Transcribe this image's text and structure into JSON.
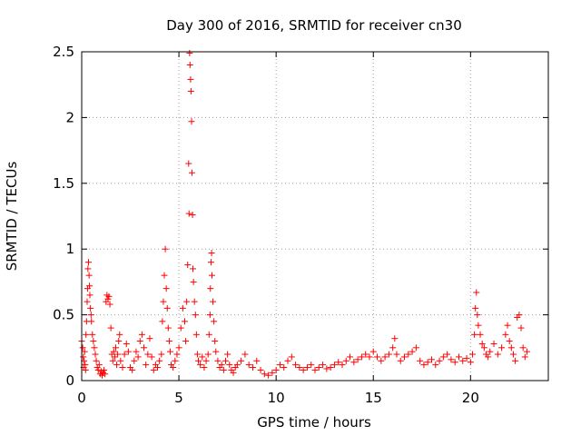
{
  "chart_data": {
    "type": "scatter",
    "title": "Day 300 of 2016, SRMTID for receiver cn30",
    "xlabel": "GPS time / hours",
    "ylabel": "SRMTID / TECUs",
    "xlim": [
      0,
      24
    ],
    "ylim": [
      0,
      2.5
    ],
    "x_ticks": [
      0,
      5,
      10,
      15,
      20
    ],
    "x_tick_labels": [
      "0",
      "5",
      "10",
      "15",
      "20"
    ],
    "y_ticks": [
      0,
      0.5,
      1,
      1.5,
      2,
      2.5
    ],
    "y_tick_labels": [
      "0",
      "0.5",
      "1",
      "1.5",
      "2",
      "2.5"
    ],
    "grid": true,
    "marker": "+",
    "color": "#ff0000",
    "series": [
      {
        "name": "SRMTID",
        "points": [
          [
            0.0,
            0.3
          ],
          [
            0.05,
            0.25
          ],
          [
            0.08,
            0.18
          ],
          [
            0.1,
            0.1
          ],
          [
            0.12,
            0.15
          ],
          [
            0.15,
            0.22
          ],
          [
            0.18,
            0.12
          ],
          [
            0.2,
            0.08
          ],
          [
            0.22,
            0.35
          ],
          [
            0.25,
            0.45
          ],
          [
            0.28,
            0.6
          ],
          [
            0.3,
            0.7
          ],
          [
            0.32,
            0.85
          ],
          [
            0.35,
            0.9
          ],
          [
            0.38,
            0.8
          ],
          [
            0.4,
            0.72
          ],
          [
            0.42,
            0.65
          ],
          [
            0.45,
            0.55
          ],
          [
            0.48,
            0.5
          ],
          [
            0.5,
            0.45
          ],
          [
            0.55,
            0.35
          ],
          [
            0.6,
            0.3
          ],
          [
            0.65,
            0.25
          ],
          [
            0.7,
            0.2
          ],
          [
            0.75,
            0.15
          ],
          [
            0.8,
            0.1
          ],
          [
            0.85,
            0.08
          ],
          [
            0.9,
            0.12
          ],
          [
            0.95,
            0.05
          ],
          [
            1.0,
            0.07
          ],
          [
            1.05,
            0.04
          ],
          [
            1.1,
            0.06
          ],
          [
            1.15,
            0.08
          ],
          [
            1.2,
            0.05
          ],
          [
            1.25,
            0.6
          ],
          [
            1.3,
            0.65
          ],
          [
            1.35,
            0.62
          ],
          [
            1.4,
            0.64
          ],
          [
            1.45,
            0.58
          ],
          [
            1.5,
            0.4
          ],
          [
            1.55,
            0.2
          ],
          [
            1.6,
            0.15
          ],
          [
            1.65,
            0.22
          ],
          [
            1.7,
            0.18
          ],
          [
            1.75,
            0.25
          ],
          [
            1.8,
            0.12
          ],
          [
            1.85,
            0.2
          ],
          [
            1.9,
            0.3
          ],
          [
            1.95,
            0.35
          ],
          [
            2.0,
            0.15
          ],
          [
            2.1,
            0.1
          ],
          [
            2.2,
            0.2
          ],
          [
            2.3,
            0.28
          ],
          [
            2.4,
            0.22
          ],
          [
            2.5,
            0.1
          ],
          [
            2.6,
            0.08
          ],
          [
            2.7,
            0.15
          ],
          [
            2.8,
            0.22
          ],
          [
            2.9,
            0.18
          ],
          [
            3.0,
            0.3
          ],
          [
            3.1,
            0.35
          ],
          [
            3.2,
            0.25
          ],
          [
            3.3,
            0.12
          ],
          [
            3.4,
            0.2
          ],
          [
            3.5,
            0.32
          ],
          [
            3.6,
            0.18
          ],
          [
            3.7,
            0.08
          ],
          [
            3.8,
            0.12
          ],
          [
            3.9,
            0.1
          ],
          [
            4.0,
            0.15
          ],
          [
            4.1,
            0.2
          ],
          [
            4.15,
            0.45
          ],
          [
            4.2,
            0.6
          ],
          [
            4.25,
            0.8
          ],
          [
            4.3,
            1.0
          ],
          [
            4.35,
            0.7
          ],
          [
            4.4,
            0.55
          ],
          [
            4.45,
            0.4
          ],
          [
            4.5,
            0.3
          ],
          [
            4.55,
            0.22
          ],
          [
            4.6,
            0.12
          ],
          [
            4.7,
            0.1
          ],
          [
            4.8,
            0.15
          ],
          [
            4.9,
            0.2
          ],
          [
            5.0,
            0.25
          ],
          [
            5.1,
            0.4
          ],
          [
            5.2,
            0.55
          ],
          [
            5.3,
            0.45
          ],
          [
            5.35,
            0.3
          ],
          [
            5.4,
            0.6
          ],
          [
            5.45,
            0.88
          ],
          [
            5.5,
            1.65
          ],
          [
            5.52,
            1.27
          ],
          [
            5.55,
            2.49
          ],
          [
            5.57,
            2.4
          ],
          [
            5.6,
            2.29
          ],
          [
            5.62,
            2.2
          ],
          [
            5.65,
            1.97
          ],
          [
            5.67,
            1.58
          ],
          [
            5.7,
            1.26
          ],
          [
            5.72,
            0.85
          ],
          [
            5.75,
            0.75
          ],
          [
            5.8,
            0.6
          ],
          [
            5.85,
            0.5
          ],
          [
            5.9,
            0.35
          ],
          [
            5.95,
            0.2
          ],
          [
            6.0,
            0.15
          ],
          [
            6.1,
            0.12
          ],
          [
            6.2,
            0.18
          ],
          [
            6.3,
            0.1
          ],
          [
            6.4,
            0.15
          ],
          [
            6.5,
            0.2
          ],
          [
            6.55,
            0.35
          ],
          [
            6.6,
            0.5
          ],
          [
            6.62,
            0.7
          ],
          [
            6.65,
            0.9
          ],
          [
            6.68,
            0.97
          ],
          [
            6.7,
            0.8
          ],
          [
            6.75,
            0.6
          ],
          [
            6.8,
            0.45
          ],
          [
            6.85,
            0.3
          ],
          [
            6.9,
            0.22
          ],
          [
            7.0,
            0.15
          ],
          [
            7.1,
            0.1
          ],
          [
            7.2,
            0.12
          ],
          [
            7.3,
            0.08
          ],
          [
            7.4,
            0.15
          ],
          [
            7.5,
            0.2
          ],
          [
            7.6,
            0.12
          ],
          [
            7.7,
            0.08
          ],
          [
            7.8,
            0.06
          ],
          [
            7.9,
            0.1
          ],
          [
            8.0,
            0.12
          ],
          [
            8.2,
            0.15
          ],
          [
            8.4,
            0.2
          ],
          [
            8.6,
            0.12
          ],
          [
            8.8,
            0.1
          ],
          [
            9.0,
            0.15
          ],
          [
            9.2,
            0.08
          ],
          [
            9.4,
            0.05
          ],
          [
            9.6,
            0.04
          ],
          [
            9.8,
            0.06
          ],
          [
            10.0,
            0.08
          ],
          [
            10.2,
            0.12
          ],
          [
            10.4,
            0.1
          ],
          [
            10.6,
            0.15
          ],
          [
            10.8,
            0.18
          ],
          [
            11.0,
            0.12
          ],
          [
            11.2,
            0.1
          ],
          [
            11.4,
            0.08
          ],
          [
            11.6,
            0.1
          ],
          [
            11.8,
            0.12
          ],
          [
            12.0,
            0.08
          ],
          [
            12.2,
            0.1
          ],
          [
            12.4,
            0.12
          ],
          [
            12.6,
            0.09
          ],
          [
            12.8,
            0.1
          ],
          [
            13.0,
            0.12
          ],
          [
            13.2,
            0.14
          ],
          [
            13.4,
            0.12
          ],
          [
            13.6,
            0.15
          ],
          [
            13.8,
            0.18
          ],
          [
            14.0,
            0.14
          ],
          [
            14.2,
            0.16
          ],
          [
            14.4,
            0.18
          ],
          [
            14.6,
            0.2
          ],
          [
            14.8,
            0.18
          ],
          [
            15.0,
            0.22
          ],
          [
            15.2,
            0.18
          ],
          [
            15.4,
            0.15
          ],
          [
            15.6,
            0.18
          ],
          [
            15.8,
            0.2
          ],
          [
            16.0,
            0.25
          ],
          [
            16.1,
            0.32
          ],
          [
            16.2,
            0.2
          ],
          [
            16.4,
            0.15
          ],
          [
            16.6,
            0.18
          ],
          [
            16.8,
            0.2
          ],
          [
            17.0,
            0.22
          ],
          [
            17.2,
            0.25
          ],
          [
            17.4,
            0.15
          ],
          [
            17.6,
            0.12
          ],
          [
            17.8,
            0.14
          ],
          [
            18.0,
            0.16
          ],
          [
            18.2,
            0.12
          ],
          [
            18.4,
            0.15
          ],
          [
            18.6,
            0.18
          ],
          [
            18.8,
            0.2
          ],
          [
            19.0,
            0.16
          ],
          [
            19.2,
            0.14
          ],
          [
            19.4,
            0.18
          ],
          [
            19.6,
            0.15
          ],
          [
            19.8,
            0.17
          ],
          [
            20.0,
            0.14
          ],
          [
            20.1,
            0.2
          ],
          [
            20.2,
            0.35
          ],
          [
            20.25,
            0.55
          ],
          [
            20.3,
            0.67
          ],
          [
            20.35,
            0.5
          ],
          [
            20.4,
            0.42
          ],
          [
            20.5,
            0.35
          ],
          [
            20.6,
            0.28
          ],
          [
            20.7,
            0.25
          ],
          [
            20.8,
            0.2
          ],
          [
            20.9,
            0.18
          ],
          [
            21.0,
            0.22
          ],
          [
            21.2,
            0.28
          ],
          [
            21.4,
            0.2
          ],
          [
            21.6,
            0.25
          ],
          [
            21.8,
            0.35
          ],
          [
            21.9,
            0.42
          ],
          [
            22.0,
            0.3
          ],
          [
            22.1,
            0.25
          ],
          [
            22.2,
            0.2
          ],
          [
            22.3,
            0.15
          ],
          [
            22.4,
            0.48
          ],
          [
            22.5,
            0.5
          ],
          [
            22.6,
            0.4
          ],
          [
            22.7,
            0.25
          ],
          [
            22.8,
            0.18
          ],
          [
            22.9,
            0.22
          ]
        ]
      }
    ]
  }
}
